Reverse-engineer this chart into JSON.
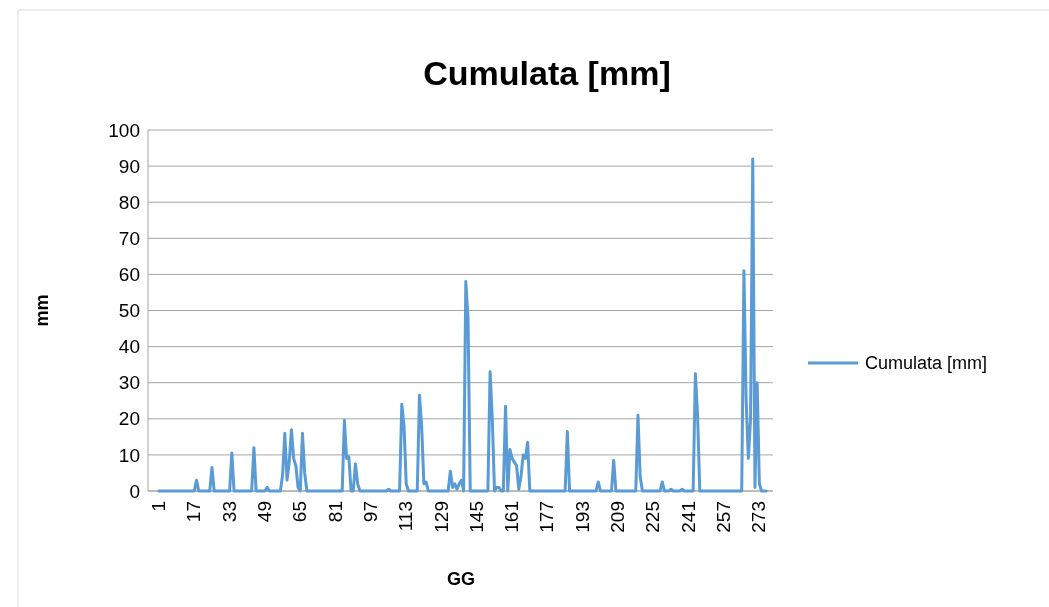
{
  "chart_data": {
    "type": "line",
    "title": "Cumulata [mm]",
    "xlabel": "GG",
    "ylabel": "mm",
    "categories": [
      "1",
      null,
      null,
      null,
      null,
      null,
      null,
      null,
      null,
      null,
      null,
      null,
      null,
      null,
      null,
      null,
      "17",
      null,
      null,
      null,
      null,
      null,
      null,
      null,
      null,
      null,
      null,
      null,
      null,
      null,
      null,
      null,
      "33",
      null,
      null,
      null,
      null,
      null,
      null,
      null,
      null,
      null,
      null,
      null,
      null,
      null,
      null,
      null,
      "49",
      null,
      null,
      null,
      null,
      null,
      null,
      null,
      null,
      null,
      null,
      null,
      null,
      null,
      null,
      null,
      "65",
      null,
      null,
      null,
      null,
      null,
      null,
      null,
      null,
      null,
      null,
      null,
      null,
      null,
      null,
      null,
      "81",
      null,
      null,
      null,
      null,
      null,
      null,
      null,
      null,
      null,
      null,
      null,
      null,
      null,
      null,
      null,
      "97",
      null,
      null,
      null,
      null,
      null,
      null,
      null,
      null,
      null,
      null,
      null,
      null,
      null,
      null,
      null,
      "113",
      null,
      null,
      null,
      null,
      null,
      null,
      null,
      null,
      null,
      null,
      null,
      null,
      null,
      null,
      null,
      "129",
      null,
      null,
      null,
      null,
      null,
      null,
      null,
      null,
      null,
      null,
      null,
      null,
      null,
      null,
      null,
      "145",
      null,
      null,
      null,
      null,
      null,
      null,
      null,
      null,
      null,
      null,
      null,
      null,
      null,
      null,
      null,
      "161",
      null,
      null,
      null,
      null,
      null,
      null,
      null,
      null,
      null,
      null,
      null,
      null,
      null,
      null,
      null,
      "177",
      null,
      null,
      null,
      null,
      null,
      null,
      null,
      null,
      null,
      null,
      null,
      null,
      null,
      null,
      null,
      "193",
      null,
      null,
      null,
      null,
      null,
      null,
      null,
      null,
      null,
      null,
      null,
      null,
      null,
      null,
      null,
      "209",
      null,
      null,
      null,
      null,
      null,
      null,
      null,
      null,
      null,
      null,
      null,
      null,
      null,
      null,
      null,
      "225",
      null,
      null,
      null,
      null,
      null,
      null,
      null,
      null,
      null,
      null,
      null,
      null,
      null,
      null,
      null,
      "241",
      null,
      null,
      null,
      null,
      null,
      null,
      null,
      null,
      null,
      null,
      null,
      null,
      null,
      null,
      null,
      "257",
      null,
      null,
      null,
      null,
      null,
      null,
      null,
      null,
      null,
      null,
      null,
      null,
      null,
      null,
      null,
      "273",
      null,
      null,
      null
    ],
    "series": [
      {
        "name": "Cumulata [mm]",
        "color": "#5b9bd5",
        "values": [
          0,
          0,
          0,
          0,
          0,
          0,
          0,
          0,
          0,
          0,
          0,
          0,
          0,
          0,
          0,
          0,
          0,
          3,
          0,
          0,
          0,
          0,
          0,
          0,
          6.5,
          0,
          0,
          0,
          0,
          0,
          0,
          0,
          0,
          10.5,
          0,
          0,
          0,
          0,
          0,
          0,
          0,
          0,
          0,
          12,
          0,
          0,
          0,
          0,
          0,
          1,
          0,
          0,
          0,
          0,
          0,
          0,
          4.5,
          16,
          3,
          8,
          17,
          9,
          7,
          1,
          0,
          16,
          5,
          0,
          0,
          0,
          0,
          0,
          0,
          0,
          0,
          0,
          0,
          0,
          0,
          0,
          0,
          0,
          0,
          0,
          19.5,
          9,
          9.5,
          0,
          0,
          7.5,
          2,
          0,
          0,
          0,
          0,
          0,
          0,
          0,
          0,
          0,
          0,
          0,
          0,
          0,
          0.5,
          0,
          0,
          0,
          0,
          0,
          24,
          18,
          2,
          0,
          0,
          0,
          0,
          0,
          26.5,
          18,
          2,
          2.5,
          0,
          0,
          0,
          0,
          0,
          0,
          0,
          0,
          0,
          0,
          5.5,
          1,
          2,
          0.5,
          2,
          3,
          0,
          58,
          48,
          0,
          0,
          0,
          0,
          0,
          0,
          0,
          0,
          0,
          33,
          20,
          0,
          1,
          1,
          0,
          0,
          23.5,
          0,
          11.5,
          9,
          8,
          7,
          0.5,
          4,
          10,
          9,
          13.5,
          0,
          0,
          0,
          0,
          0,
          0,
          0,
          0,
          0,
          0,
          0,
          0,
          0,
          0,
          0,
          0,
          0,
          16.5,
          0,
          0,
          0,
          0,
          0,
          0,
          0,
          0,
          0,
          0,
          0,
          0,
          0,
          2.5,
          0,
          0,
          0,
          0,
          0,
          0,
          8.5,
          0,
          0,
          0,
          0,
          0,
          0,
          0,
          0,
          0,
          0,
          21,
          4,
          0,
          0,
          0,
          0,
          0,
          0,
          0,
          0,
          0,
          2.5,
          0,
          0,
          0,
          0.5,
          0,
          0,
          0,
          0,
          0.5,
          0,
          0,
          0,
          0,
          0,
          32.5,
          21,
          0,
          0,
          0,
          0,
          0,
          0,
          0,
          0,
          0,
          0,
          0,
          0,
          0,
          0,
          0,
          0,
          0,
          0,
          0,
          0,
          61,
          25,
          9,
          20,
          92,
          1,
          30,
          2,
          0,
          0,
          0
        ]
      }
    ],
    "ylim": [
      0,
      100
    ],
    "yticks": [
      0,
      10,
      20,
      30,
      40,
      50,
      60,
      70,
      80,
      90,
      100
    ],
    "grid": "y",
    "legend": "right"
  }
}
